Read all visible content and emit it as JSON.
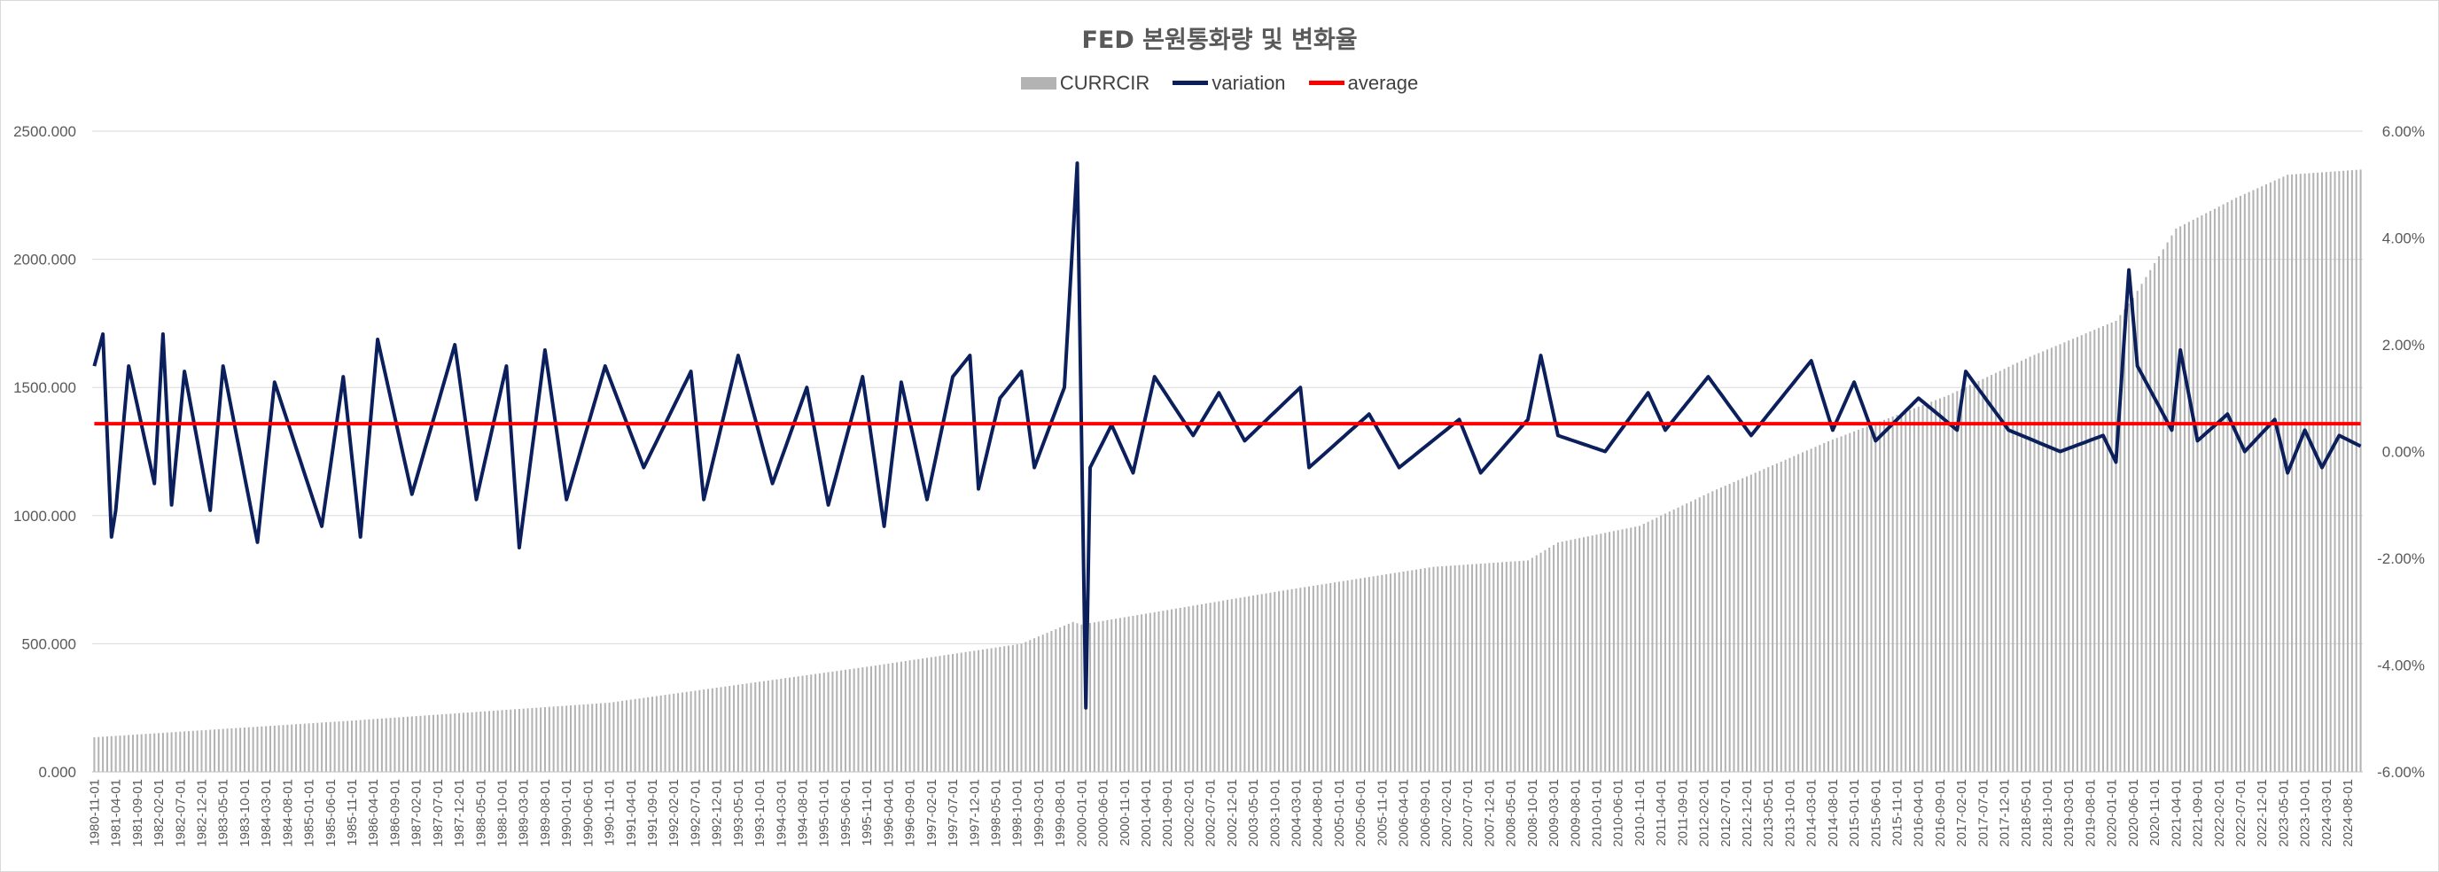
{
  "chart_data": {
    "type": "bar+line",
    "title": "FED 본원통화량 및 변화율",
    "legend_position": "top",
    "grid": true,
    "y_left": {
      "ylim": [
        0,
        2500
      ],
      "ticks": [
        "0.000",
        "500.000",
        "1000.000",
        "1500.000",
        "2000.000",
        "2500.000"
      ]
    },
    "y_right": {
      "ylim": [
        -6,
        6
      ],
      "ticks": [
        "-6.00%",
        "-4.00%",
        "-2.00%",
        "0.00%",
        "2.00%",
        "4.00%",
        "6.00%"
      ]
    },
    "x_start": "1980-11",
    "x_end": "2024-11",
    "x_tick_labels": [
      "1980-11-01",
      "1981-04-01",
      "1981-09-01",
      "1982-02-01",
      "1982-07-01",
      "1982-12-01",
      "1983-05-01",
      "1983-10-01",
      "1984-03-01",
      "1984-08-01",
      "1985-01-01",
      "1985-06-01",
      "1985-11-01",
      "1986-04-01",
      "1986-09-01",
      "1987-02-01",
      "1987-07-01",
      "1987-12-01",
      "1988-05-01",
      "1988-10-01",
      "1989-03-01",
      "1989-08-01",
      "1990-01-01",
      "1990-06-01",
      "1990-11-01",
      "1991-04-01",
      "1991-09-01",
      "1992-02-01",
      "1992-07-01",
      "1992-12-01",
      "1993-05-01",
      "1993-10-01",
      "1994-03-01",
      "1994-08-01",
      "1995-01-01",
      "1995-06-01",
      "1995-11-01",
      "1996-04-01",
      "1996-09-01",
      "1997-02-01",
      "1997-07-01",
      "1997-12-01",
      "1998-05-01",
      "1998-10-01",
      "1999-03-01",
      "1999-08-01",
      "2000-01-01",
      "2000-06-01",
      "2000-11-01",
      "2001-04-01",
      "2001-09-01",
      "2002-02-01",
      "2002-07-01",
      "2002-12-01",
      "2003-05-01",
      "2003-10-01",
      "2004-03-01",
      "2004-08-01",
      "2005-01-01",
      "2005-06-01",
      "2005-11-01",
      "2006-04-01",
      "2006-09-01",
      "2007-02-01",
      "2007-07-01",
      "2007-12-01",
      "2008-05-01",
      "2008-10-01",
      "2009-03-01",
      "2009-08-01",
      "2010-01-01",
      "2010-06-01",
      "2010-11-01",
      "2011-04-01",
      "2011-09-01",
      "2012-02-01",
      "2012-07-01",
      "2012-12-01",
      "2013-05-01",
      "2013-10-01",
      "2014-03-01",
      "2014-08-01",
      "2015-01-01",
      "2015-06-01",
      "2015-11-01",
      "2016-04-01",
      "2016-09-01",
      "2017-02-01",
      "2017-07-01",
      "2017-12-01",
      "2018-05-01",
      "2018-10-01",
      "2019-03-01",
      "2019-08-01",
      "2020-01-01",
      "2020-06-01",
      "2020-11-01",
      "2021-04-01",
      "2021-09-01",
      "2022-02-01",
      "2022-07-01",
      "2022-12-01",
      "2023-05-01",
      "2023-10-01",
      "2024-03-01",
      "2024-08-01"
    ],
    "series": [
      {
        "name": "CURRCIR",
        "kind": "bar",
        "color": "#b3b3b3",
        "anchors": [
          [
            "1980-11",
            135
          ],
          [
            "1985-11",
            200
          ],
          [
            "1990-11",
            270
          ],
          [
            "1995-11",
            410
          ],
          [
            "1998-11",
            500
          ],
          [
            "1999-11",
            585
          ],
          [
            "2000-01",
            575
          ],
          [
            "2003-11",
            705
          ],
          [
            "2006-11",
            800
          ],
          [
            "2008-09",
            825
          ],
          [
            "2009-04",
            895
          ],
          [
            "2010-11",
            960
          ],
          [
            "2012-04",
            1095
          ],
          [
            "2014-07",
            1290
          ],
          [
            "2016-11",
            1470
          ],
          [
            "2018-06",
            1620
          ],
          [
            "2020-02",
            1760
          ],
          [
            "2020-06",
            1850
          ],
          [
            "2021-04",
            2120
          ],
          [
            "2022-06",
            2240
          ],
          [
            "2023-06",
            2330
          ],
          [
            "2024-11",
            2350
          ]
        ]
      },
      {
        "name": "variation",
        "kind": "line",
        "color": "#0b1f5c",
        "anchors": [
          [
            "1980-11",
            1.6
          ],
          [
            "1981-01",
            2.2
          ],
          [
            "1981-03",
            -1.6
          ],
          [
            "1981-04",
            -1.1
          ],
          [
            "1981-07",
            1.6
          ],
          [
            "1982-01",
            -0.6
          ],
          [
            "1982-03",
            2.2
          ],
          [
            "1982-05",
            -1.0
          ],
          [
            "1982-08",
            1.5
          ],
          [
            "1983-02",
            -1.1
          ],
          [
            "1983-05",
            1.6
          ],
          [
            "1984-01",
            -1.7
          ],
          [
            "1984-05",
            1.3
          ],
          [
            "1985-04",
            -1.4
          ],
          [
            "1985-09",
            1.4
          ],
          [
            "1986-01",
            -1.6
          ],
          [
            "1986-05",
            2.1
          ],
          [
            "1987-01",
            -0.8
          ],
          [
            "1987-11",
            2.0
          ],
          [
            "1988-04",
            -0.9
          ],
          [
            "1988-11",
            1.6
          ],
          [
            "1989-02",
            -1.8
          ],
          [
            "1989-08",
            1.9
          ],
          [
            "1990-01",
            -0.9
          ],
          [
            "1990-10",
            1.6
          ],
          [
            "1991-07",
            -0.3
          ],
          [
            "1992-06",
            1.5
          ],
          [
            "1992-09",
            -0.9
          ],
          [
            "1993-05",
            1.8
          ],
          [
            "1994-01",
            -0.6
          ],
          [
            "1994-09",
            1.2
          ],
          [
            "1995-02",
            -1.0
          ],
          [
            "1995-10",
            1.4
          ],
          [
            "1996-03",
            -1.4
          ],
          [
            "1996-07",
            1.3
          ],
          [
            "1997-01",
            -0.9
          ],
          [
            "1997-07",
            1.4
          ],
          [
            "1997-11",
            1.8
          ],
          [
            "1998-01",
            -0.7
          ],
          [
            "1998-06",
            1.0
          ],
          [
            "1998-11",
            1.5
          ],
          [
            "1999-02",
            -0.3
          ],
          [
            "1999-09",
            1.2
          ],
          [
            "1999-12",
            5.4
          ],
          [
            "2000-02",
            -4.8
          ],
          [
            "2000-03",
            -0.3
          ],
          [
            "2000-08",
            0.5
          ],
          [
            "2001-01",
            -0.4
          ],
          [
            "2001-06",
            1.4
          ],
          [
            "2002-03",
            0.3
          ],
          [
            "2002-09",
            1.1
          ],
          [
            "2003-03",
            0.2
          ],
          [
            "2004-04",
            1.2
          ],
          [
            "2004-06",
            -0.3
          ],
          [
            "2005-08",
            0.7
          ],
          [
            "2006-03",
            -0.3
          ],
          [
            "2007-05",
            0.6
          ],
          [
            "2007-10",
            -0.4
          ],
          [
            "2008-09",
            0.6
          ],
          [
            "2008-12",
            1.8
          ],
          [
            "2009-04",
            0.3
          ],
          [
            "2010-03",
            0.0
          ],
          [
            "2011-01",
            1.1
          ],
          [
            "2011-05",
            0.4
          ],
          [
            "2012-03",
            1.4
          ],
          [
            "2013-01",
            0.3
          ],
          [
            "2014-03",
            1.7
          ],
          [
            "2014-08",
            0.4
          ],
          [
            "2015-01",
            1.3
          ],
          [
            "2015-06",
            0.2
          ],
          [
            "2016-04",
            1.0
          ],
          [
            "2017-01",
            0.4
          ],
          [
            "2017-03",
            1.5
          ],
          [
            "2018-01",
            0.4
          ],
          [
            "2019-01",
            0.0
          ],
          [
            "2019-11",
            0.3
          ],
          [
            "2020-02",
            -0.2
          ],
          [
            "2020-05",
            3.4
          ],
          [
            "2020-07",
            1.6
          ],
          [
            "2021-03",
            0.4
          ],
          [
            "2021-05",
            1.9
          ],
          [
            "2021-09",
            0.2
          ],
          [
            "2022-04",
            0.7
          ],
          [
            "2022-08",
            0.0
          ],
          [
            "2023-03",
            0.6
          ],
          [
            "2023-06",
            -0.4
          ],
          [
            "2023-10",
            0.4
          ],
          [
            "2024-02",
            -0.3
          ],
          [
            "2024-06",
            0.3
          ],
          [
            "2024-11",
            0.1
          ]
        ]
      },
      {
        "name": "average",
        "kind": "line",
        "color": "#ff0000",
        "value": 0.52
      }
    ]
  }
}
